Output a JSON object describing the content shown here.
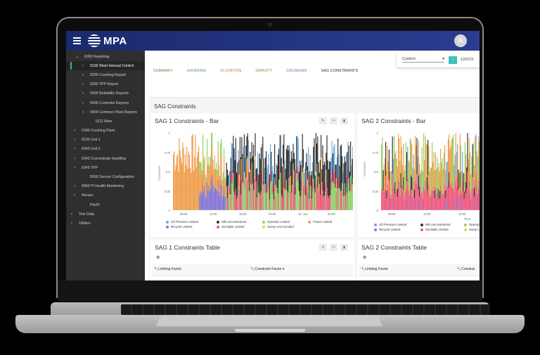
{
  "header": {
    "app_name": "MPA",
    "avatar_initial": "A"
  },
  "sidebar": {
    "items": [
      {
        "label": "0000 Reporting",
        "indent": 8,
        "chevron": "⌄",
        "active": false
      },
      {
        "label": "0100 Short Interval Control",
        "indent": 16,
        "chevron": "›",
        "active": true
      },
      {
        "label": "0200 Crushing Report",
        "indent": 16,
        "chevron": "›",
        "active": false
      },
      {
        "label": "0300 TPP Report",
        "indent": 16,
        "chevron": "›",
        "active": false
      },
      {
        "label": "0400 Reliability Reports",
        "indent": 16,
        "chevron": "›",
        "active": false
      },
      {
        "label": "0500 Controller Reports",
        "indent": 16,
        "chevron": "›",
        "active": false
      },
      {
        "label": "0900 Common Plant Reports",
        "indent": 16,
        "chevron": "›",
        "active": false
      },
      {
        "label": "0111 Mine",
        "indent": 24,
        "chevron": "",
        "active": false
      },
      {
        "label": "0180 Crushing Plant",
        "indent": 4,
        "chevron": "›",
        "active": false
      },
      {
        "label": "0230 Unit 1",
        "indent": 4,
        "chevron": "›",
        "active": false
      },
      {
        "label": "0340 Unit 2",
        "indent": 4,
        "chevron": "›",
        "active": false
      },
      {
        "label": "0343 Concentrate Handling",
        "indent": 4,
        "chevron": "›",
        "active": false
      },
      {
        "label": "0349 TPP",
        "indent": 4,
        "chevron": "›",
        "active": false
      },
      {
        "label": "9000 Service Configuration",
        "indent": 16,
        "chevron": "",
        "active": false
      },
      {
        "label": "9999 PI Health Monitoring",
        "indent": 4,
        "chevron": "›",
        "active": false
      },
      {
        "label": "Assays",
        "indent": 4,
        "chevron": "›",
        "active": false
      },
      {
        "label": "PitoPI",
        "indent": 16,
        "chevron": "",
        "active": false
      },
      {
        "label": "Test Data",
        "indent": 0,
        "chevron": "›",
        "active": false
      },
      {
        "label": "Utilities",
        "indent": 0,
        "chevron": "›",
        "active": false
      }
    ]
  },
  "tabs": [
    {
      "label": "SUMMARY",
      "color": "#6b7a3a"
    },
    {
      "label": "GRINDING",
      "color": "#5a8f7b"
    },
    {
      "label": "FLOTATION",
      "color": "#b07a3a"
    },
    {
      "label": "GRAVITY",
      "color": "#7a8a3a"
    },
    {
      "label": "CRUSHING",
      "color": "#5a7a9a"
    },
    {
      "label": "SAG CONSTRAINTS",
      "color": "#222222"
    }
  ],
  "range": {
    "preset": "Custom",
    "dropdown_icon": "▾",
    "prev_icon": "‹",
    "date": "12/07/2"
  },
  "panel": {
    "title": "SAG Constraints"
  },
  "tools": {
    "edit": "✎",
    "trend": "〜",
    "delete": "▮"
  },
  "charts": {
    "sag1": {
      "title": "SAG 1 Constraints - Bar",
      "ylabel": "Constraints",
      "yticks": [
        "1",
        "0.75",
        "0.5",
        "0.25",
        "0"
      ],
      "xticks": [
        "08:00",
        "12:00",
        "16:00",
        "20:00",
        "11. Jun",
        "04:00"
      ]
    },
    "sag2": {
      "title": "SAG 2 Constraints - Bar",
      "ylabel": "Constraints",
      "xlabel": "Time",
      "yticks": [
        "1",
        "0.75",
        "0.5",
        "0.25",
        "0"
      ],
      "xticks": [
        "08:00",
        "12:00",
        "16:00"
      ]
    }
  },
  "legend": [
    {
      "label": "Lift Pressure Limited",
      "color": "#6aaee0"
    },
    {
      "label": "Mill Unconstrained",
      "color": "#333333"
    },
    {
      "label": "Operator Limited",
      "color": "#8fd46a"
    },
    {
      "label": "Power Limited",
      "color": "#f0a050"
    },
    {
      "label": "Recycle Limited",
      "color": "#8577d4"
    },
    {
      "label": "Stockpile Limited",
      "color": "#ee5a7e"
    },
    {
      "label": "Sump Level Limited",
      "color": "#e8d84a"
    }
  ],
  "legend_sag2_truncated": [
    "Oper",
    "Sum"
  ],
  "tables": {
    "sag1": {
      "title": "SAG 1 Constraints Table",
      "settings_icon": "⚙",
      "columns": [
        "Limiting Factor",
        "Constraint Factor"
      ],
      "sort_icon": "▾"
    },
    "sag2": {
      "title": "SAG 2 Constraints Table",
      "settings_icon": "⚙",
      "columns": [
        "Limiting Factor",
        "Constrai"
      ]
    }
  }
}
